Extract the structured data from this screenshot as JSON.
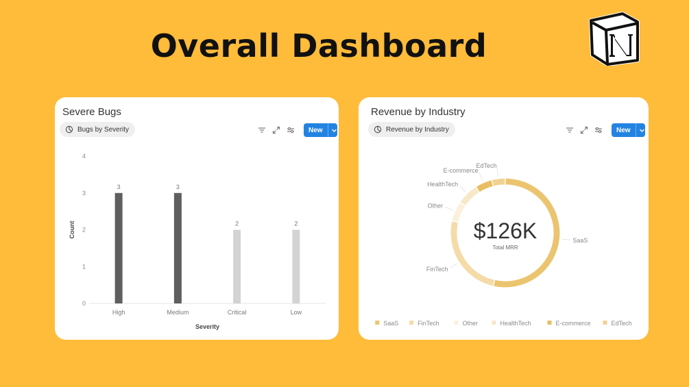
{
  "header": {
    "title": "Overall Dashboard"
  },
  "logo": {
    "icon": "notion-logo-icon",
    "letter": "N"
  },
  "cards": [
    {
      "title": "Severe Bugs",
      "view_label": "Bugs by Severity",
      "new_label": "New",
      "icons": [
        "chart-view-icon",
        "filter-icon",
        "expand-icon",
        "settings-sliders-icon",
        "chevron-down-icon"
      ]
    },
    {
      "title": "Revenue by Industry",
      "view_label": "Revenue by Industry",
      "new_label": "New",
      "icons": [
        "chart-view-icon",
        "filter-icon",
        "expand-icon",
        "settings-sliders-icon",
        "chevron-down-icon"
      ]
    }
  ],
  "chart_data": [
    {
      "type": "bar",
      "categories": [
        "High",
        "Medium",
        "Critical",
        "Low"
      ],
      "values": [
        3,
        3,
        2,
        2
      ],
      "xlabel": "Severity",
      "ylabel": "Count",
      "ylim": [
        0,
        4
      ],
      "yticks": [
        0,
        1,
        2,
        3,
        4
      ],
      "colors": [
        "#5F5F5D",
        "#5F5F5D",
        "#D3D3D2",
        "#D3D3D2"
      ],
      "grid": false
    },
    {
      "type": "pie",
      "style": "donut",
      "center_value": "$126K",
      "center_label": "Total MRR",
      "labels": [
        "SaaS",
        "FinTech",
        "Other",
        "HealthTech",
        "E-commerce",
        "EdTech"
      ],
      "values": [
        53.5,
        25,
        6,
        6.5,
        5,
        4
      ],
      "colors": [
        "#EBC46F",
        "#F4DBA8",
        "#FAF0DC",
        "#F7E8C8",
        "#E9BE63",
        "#F1D291"
      ],
      "legend": "bottom"
    }
  ]
}
